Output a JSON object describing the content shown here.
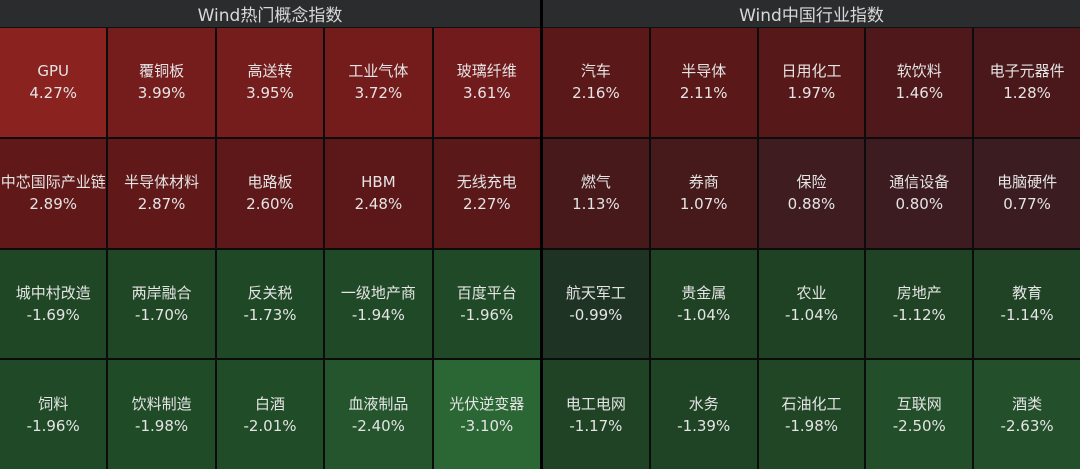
{
  "left": {
    "title": "Wind热门概念指数",
    "cells": [
      {
        "name": "GPU",
        "value": "4.27%",
        "color": "#8a2220"
      },
      {
        "name": "覆铜板",
        "value": "3.99%",
        "color": "#751c1c"
      },
      {
        "name": "高送转",
        "value": "3.95%",
        "color": "#751c1c"
      },
      {
        "name": "工业气体",
        "value": "3.72%",
        "color": "#741c1c"
      },
      {
        "name": "玻璃纤维",
        "value": "3.61%",
        "color": "#721b1c"
      },
      {
        "name": "中芯国际产业链",
        "value": "2.89%",
        "color": "#601819"
      },
      {
        "name": "半导体材料",
        "value": "2.87%",
        "color": "#601819"
      },
      {
        "name": "电路板",
        "value": "2.60%",
        "color": "#5e1819"
      },
      {
        "name": "HBM",
        "value": "2.48%",
        "color": "#5c1819"
      },
      {
        "name": "无线充电",
        "value": "2.27%",
        "color": "#5a1819"
      },
      {
        "name": "城中村改造",
        "value": "-1.69%",
        "color": "#1f4725"
      },
      {
        "name": "两岸融合",
        "value": "-1.70%",
        "color": "#1f4725"
      },
      {
        "name": "反关税",
        "value": "-1.73%",
        "color": "#1f4826"
      },
      {
        "name": "一级地产商",
        "value": "-1.94%",
        "color": "#204a27"
      },
      {
        "name": "百度平台",
        "value": "-1.96%",
        "color": "#204a27"
      },
      {
        "name": "饲料",
        "value": "-1.96%",
        "color": "#204a27"
      },
      {
        "name": "饮料制造",
        "value": "-1.98%",
        "color": "#204b27"
      },
      {
        "name": "白酒",
        "value": "-2.01%",
        "color": "#214c28"
      },
      {
        "name": "血液制品",
        "value": "-2.40%",
        "color": "#24552c"
      },
      {
        "name": "光伏逆变器",
        "value": "-3.10%",
        "color": "#2b6734"
      }
    ]
  },
  "right": {
    "title": "Wind中国行业指数",
    "cells": [
      {
        "name": "汽车",
        "value": "2.16%",
        "color": "#5a1819"
      },
      {
        "name": "半导体",
        "value": "2.11%",
        "color": "#5a1819"
      },
      {
        "name": "日用化工",
        "value": "1.97%",
        "color": "#571819"
      },
      {
        "name": "软饮料",
        "value": "1.46%",
        "color": "#4f181a"
      },
      {
        "name": "电子元器件",
        "value": "1.28%",
        "color": "#4a181a"
      },
      {
        "name": "燃气",
        "value": "1.13%",
        "color": "#47191b"
      },
      {
        "name": "券商",
        "value": "1.07%",
        "color": "#46191b"
      },
      {
        "name": "保险",
        "value": "0.88%",
        "color": "#3e1c20"
      },
      {
        "name": "通信设备",
        "value": "0.80%",
        "color": "#3c1c20"
      },
      {
        "name": "电脑硬件",
        "value": "0.77%",
        "color": "#3b1c20"
      },
      {
        "name": "航天军工",
        "value": "-0.99%",
        "color": "#1f3325"
      },
      {
        "name": "贵金属",
        "value": "-1.04%",
        "color": "#1f4224"
      },
      {
        "name": "农业",
        "value": "-1.04%",
        "color": "#1f4224"
      },
      {
        "name": "房地产",
        "value": "-1.12%",
        "color": "#1f4324"
      },
      {
        "name": "教育",
        "value": "-1.14%",
        "color": "#1f4324"
      },
      {
        "name": "电工电网",
        "value": "-1.17%",
        "color": "#1f4324"
      },
      {
        "name": "水务",
        "value": "-1.39%",
        "color": "#1f4425"
      },
      {
        "name": "石油化工",
        "value": "-1.98%",
        "color": "#204626"
      },
      {
        "name": "互联网",
        "value": "-2.50%",
        "color": "#234e2a"
      },
      {
        "name": "酒类",
        "value": "-2.63%",
        "color": "#23502b"
      }
    ]
  }
}
